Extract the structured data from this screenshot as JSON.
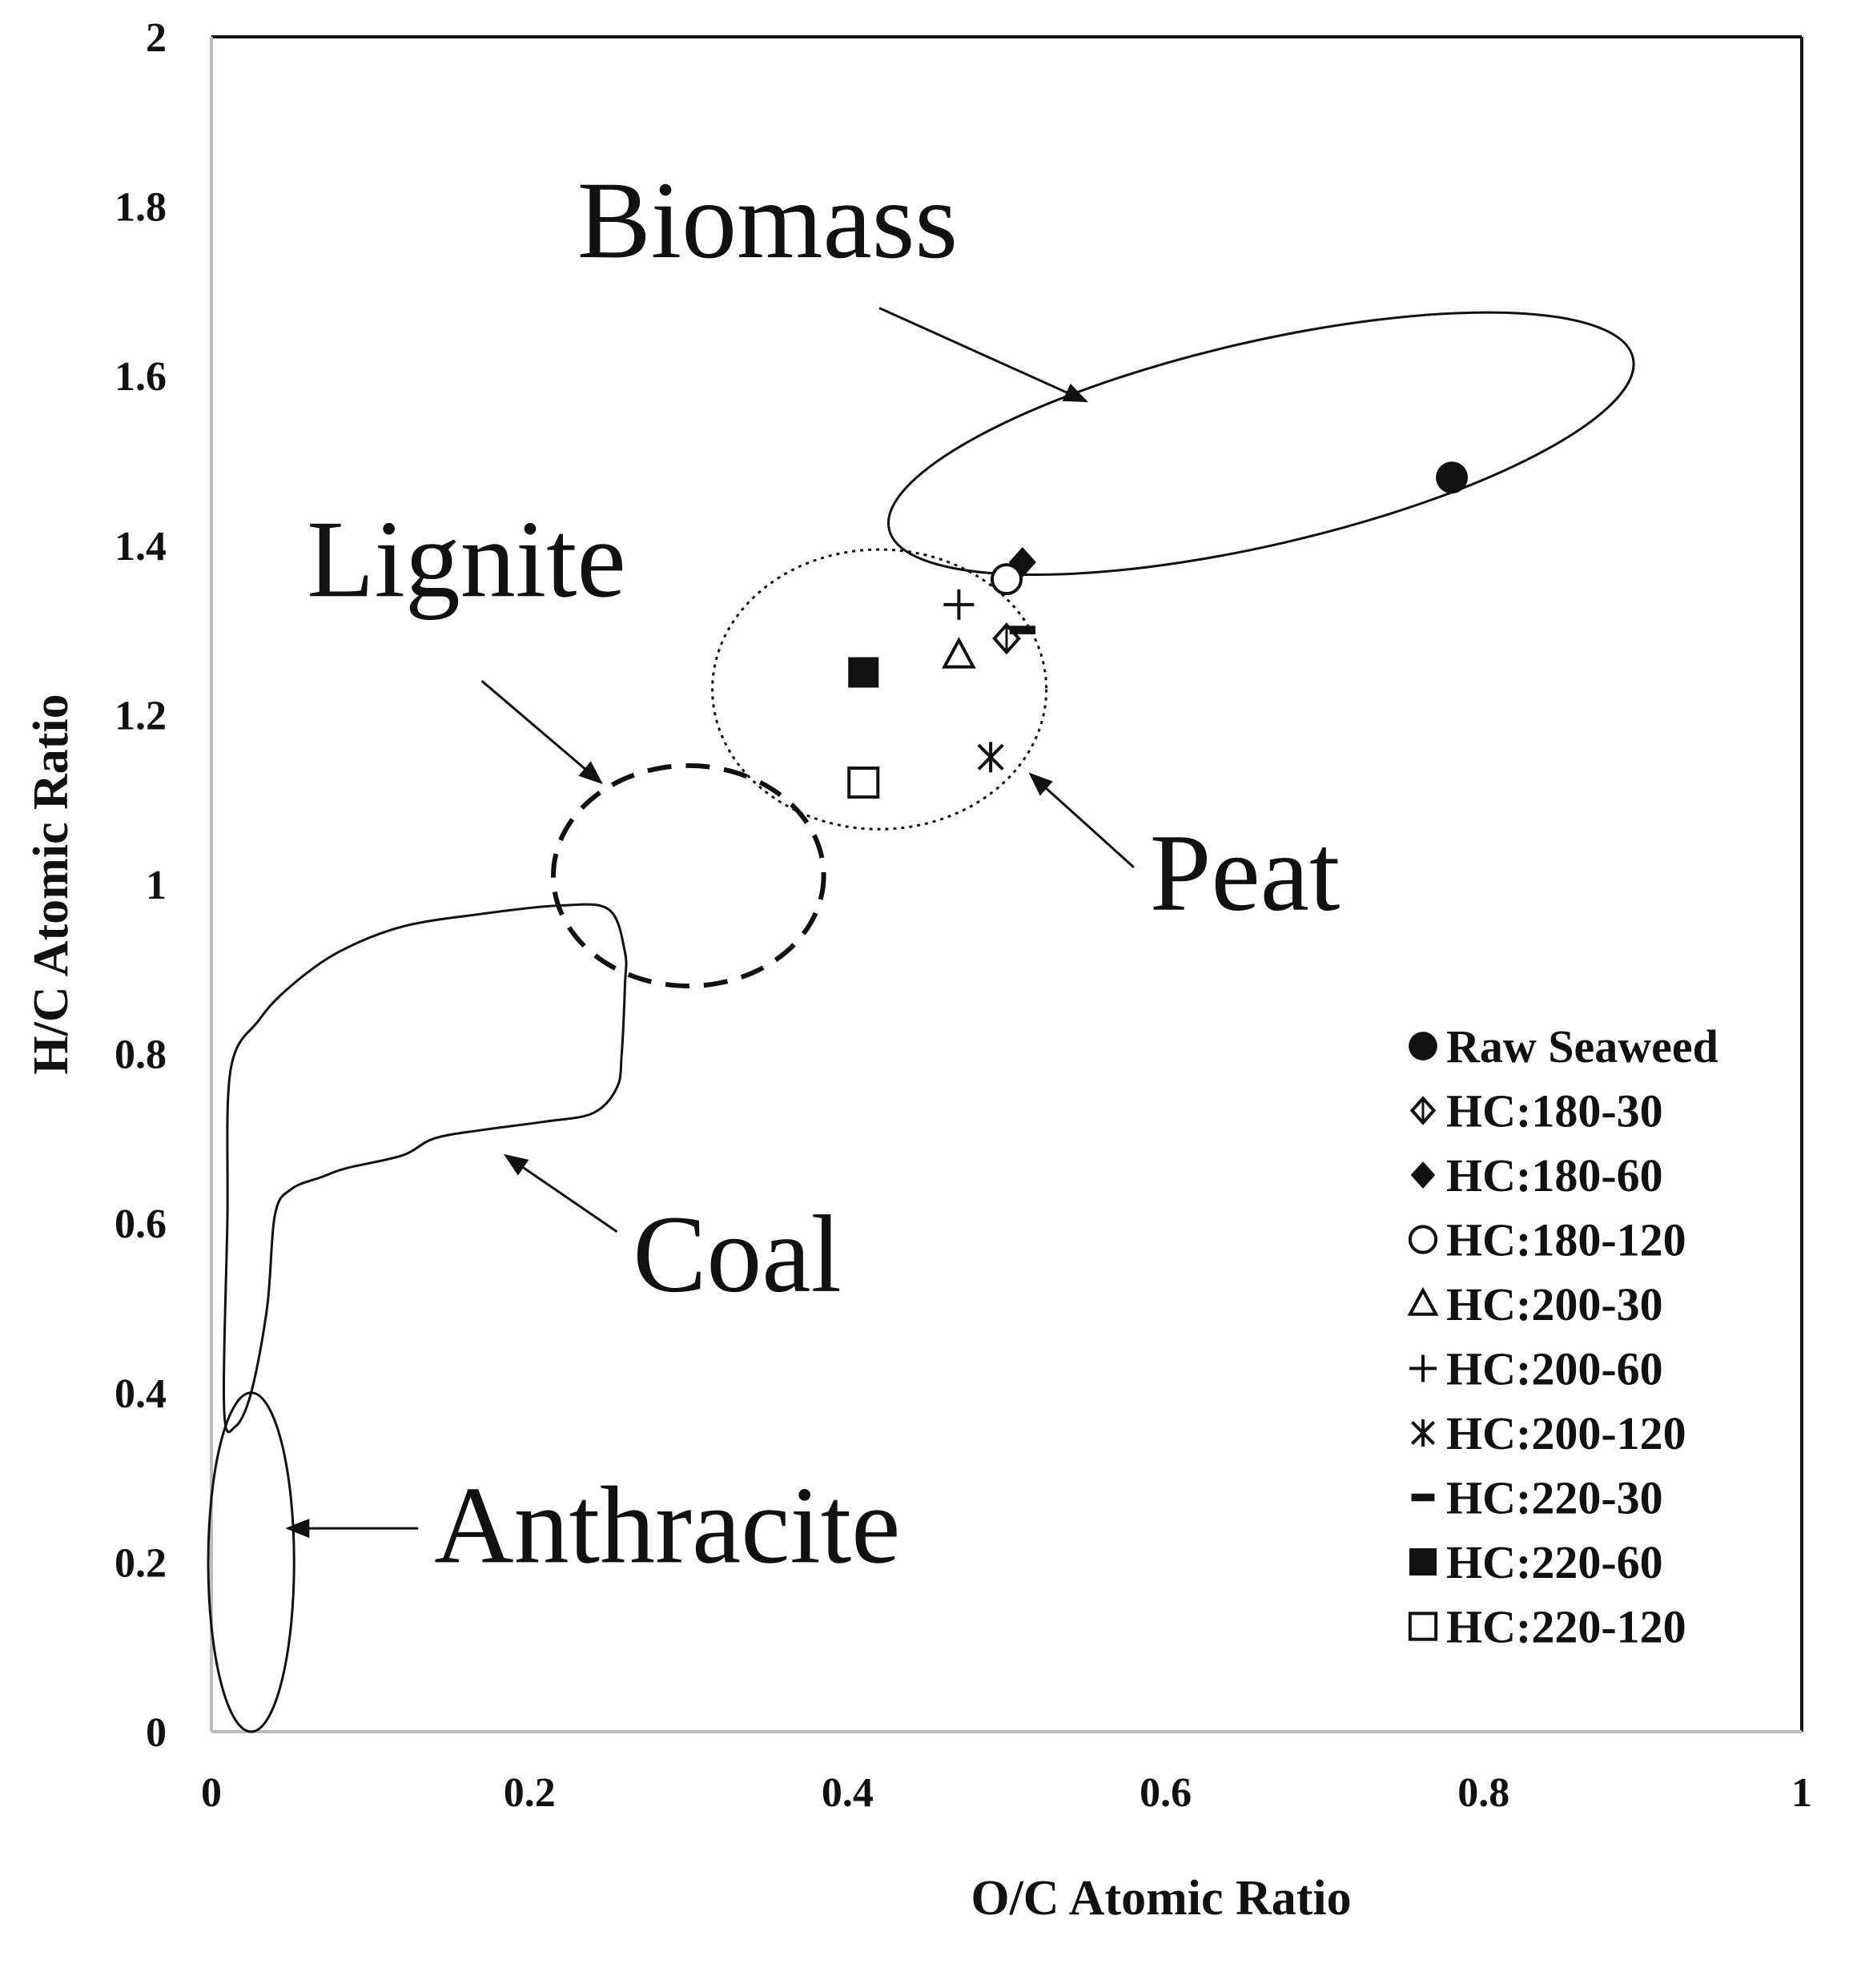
{
  "chart_data": {
    "type": "scatter",
    "title": "",
    "xlabel": "O/C Atomic Ratio",
    "ylabel": "H/C Atomic Ratio",
    "xlim": [
      0,
      1
    ],
    "ylim": [
      0,
      2
    ],
    "x_ticks": [
      "0",
      "0.2",
      "0.4",
      "0.6",
      "0.8",
      "1"
    ],
    "y_ticks": [
      "0",
      "0.2",
      "0.4",
      "0.6",
      "0.8",
      "1",
      "1.2",
      "1.4",
      "1.6",
      "1.8",
      "2"
    ],
    "grid": false,
    "legend_position": "bottom-right",
    "series": [
      {
        "name": "Raw Seaweed",
        "marker": "filled-circle",
        "x": 0.78,
        "y": 1.48
      },
      {
        "name": "HC:180-30",
        "marker": "open-diamond",
        "x": 0.5,
        "y": 1.29
      },
      {
        "name": "HC:180-60",
        "marker": "filled-diamond",
        "x": 0.51,
        "y": 1.38
      },
      {
        "name": "HC:180-120",
        "marker": "open-circle",
        "x": 0.5,
        "y": 1.36
      },
      {
        "name": "HC:200-30",
        "marker": "open-triangle",
        "x": 0.47,
        "y": 1.27
      },
      {
        "name": "HC:200-60",
        "marker": "plus",
        "x": 0.47,
        "y": 1.33
      },
      {
        "name": "HC:200-120",
        "marker": "asterisk",
        "x": 0.49,
        "y": 1.15
      },
      {
        "name": "HC:220-30",
        "marker": "dash",
        "x": 0.51,
        "y": 1.3
      },
      {
        "name": "HC:220-60",
        "marker": "filled-square",
        "x": 0.41,
        "y": 1.25
      },
      {
        "name": "HC:220-120",
        "marker": "open-square",
        "x": 0.41,
        "y": 1.12
      }
    ],
    "regions": [
      {
        "name": "Biomass",
        "shape": "ellipse",
        "cx": 0.66,
        "cy": 1.52,
        "rx": 0.24,
        "ry": 0.12,
        "angle": -13,
        "style": "solid"
      },
      {
        "name": "Peat",
        "shape": "ellipse",
        "cx": 0.42,
        "cy": 1.23,
        "rx": 0.105,
        "ry": 0.165,
        "angle": 0,
        "style": "dotted"
      },
      {
        "name": "Lignite",
        "shape": "ellipse",
        "cx": 0.3,
        "cy": 1.01,
        "rx": 0.085,
        "ry": 0.13,
        "angle": 0,
        "style": "dashed"
      },
      {
        "name": "Anthracite",
        "shape": "ellipse",
        "cx": 0.025,
        "cy": 0.2,
        "rx": 0.027,
        "ry": 0.2,
        "angle": 0,
        "style": "solid"
      },
      {
        "name": "Coal",
        "shape": "outline",
        "style": "solid",
        "points": [
          [
            0.26,
            0.88
          ],
          [
            0.258,
            0.8
          ],
          [
            0.255,
            0.76
          ],
          [
            0.24,
            0.73
          ],
          [
            0.21,
            0.72
          ],
          [
            0.17,
            0.71
          ],
          [
            0.14,
            0.7
          ],
          [
            0.12,
            0.68
          ],
          [
            0.085,
            0.665
          ],
          [
            0.07,
            0.655
          ],
          [
            0.05,
            0.64
          ],
          [
            0.04,
            0.61
          ],
          [
            0.035,
            0.5
          ],
          [
            0.025,
            0.4
          ],
          [
            0.015,
            0.36
          ],
          [
            0.008,
            0.38
          ],
          [
            0.01,
            0.6
          ],
          [
            0.012,
            0.78
          ],
          [
            0.03,
            0.84
          ],
          [
            0.05,
            0.88
          ],
          [
            0.08,
            0.92
          ],
          [
            0.12,
            0.95
          ],
          [
            0.17,
            0.965
          ],
          [
            0.22,
            0.975
          ],
          [
            0.25,
            0.97
          ],
          [
            0.26,
            0.92
          ]
        ]
      }
    ],
    "annotations": [
      {
        "text": "Biomass",
        "text_x": 0.23,
        "text_y": 1.74,
        "arrow_from": [
          0.42,
          1.68
        ],
        "arrow_to": [
          0.55,
          1.57
        ]
      },
      {
        "text": "Lignite",
        "text_x": 0.06,
        "text_y": 1.34,
        "arrow_from": [
          0.17,
          1.24
        ],
        "arrow_to": [
          0.245,
          1.12
        ]
      },
      {
        "text": "Peat",
        "text_x": 0.59,
        "text_y": 0.97,
        "arrow_from": [
          0.58,
          1.02
        ],
        "arrow_to": [
          0.515,
          1.13
        ]
      },
      {
        "text": "Coal",
        "text_x": 0.265,
        "text_y": 0.52,
        "arrow_from": [
          0.255,
          0.59
        ],
        "arrow_to": [
          0.185,
          0.68
        ]
      },
      {
        "text": "Anthracite",
        "text_x": 0.14,
        "text_y": 0.2,
        "arrow_from": [
          0.13,
          0.24
        ],
        "arrow_to": [
          0.048,
          0.24
        ]
      }
    ]
  }
}
